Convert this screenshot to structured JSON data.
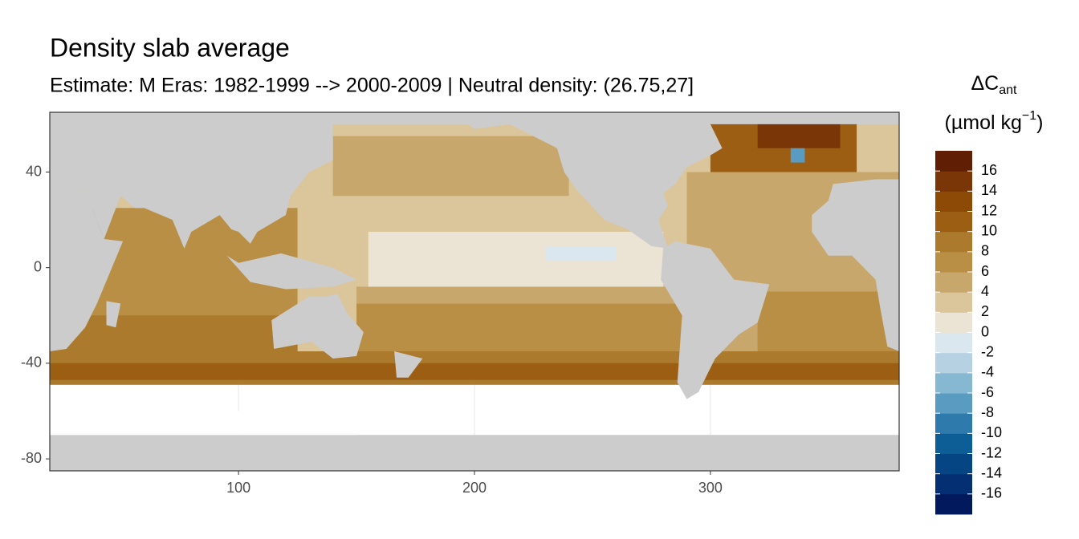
{
  "chart_data": {
    "type": "map",
    "title": "Density slab average",
    "subtitle": "Estimate: M Eras: 1982-1999 --> 2000-2009 | Neutral density: (26.75,27]",
    "xlim": [
      20,
      380
    ],
    "ylim": [
      -85,
      65
    ],
    "xticks": [
      100,
      200,
      300
    ],
    "yticks": [
      40,
      0,
      -40,
      -80
    ],
    "grid": true,
    "land_color": "#cccccc",
    "legend": {
      "title": "ΔC",
      "title_sub": "ant",
      "unit": "(µmol kg",
      "unit_sup": "−1",
      "unit_end": ")",
      "breaks": [
        -18,
        -16,
        -14,
        -12,
        -10,
        -8,
        -6,
        -4,
        -2,
        0,
        2,
        4,
        6,
        8,
        10,
        12,
        14,
        16,
        18
      ],
      "ticks": [
        16,
        14,
        12,
        10,
        8,
        6,
        4,
        2,
        0,
        -2,
        -4,
        -6,
        -8,
        -10,
        -12,
        -14,
        -16
      ],
      "colors": [
        "#03195e",
        "#052f73",
        "#064584",
        "#0d5d96",
        "#2f7aac",
        "#5a9bc1",
        "#87b8d2",
        "#b5d1e2",
        "#dbe7ee",
        "#ebe3d3",
        "#dbc59a",
        "#c7a76b",
        "#b98f45",
        "#ab7a2c",
        "#9b5e12",
        "#8c4a06",
        "#7a3606",
        "#601f04"
      ]
    }
  }
}
